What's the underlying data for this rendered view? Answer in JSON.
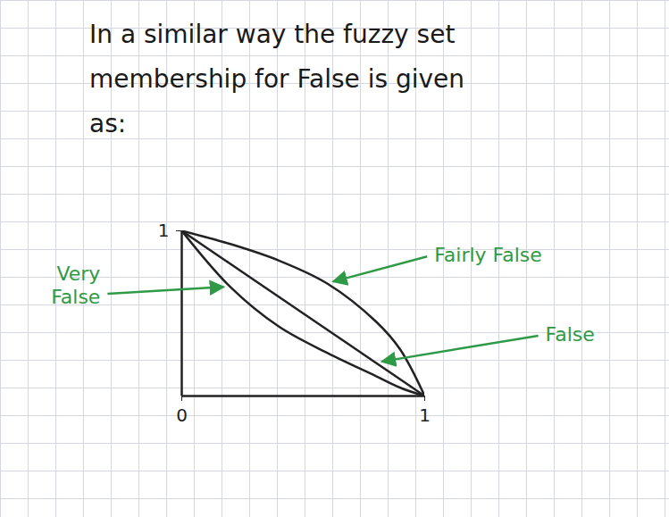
{
  "chart_data": {
    "type": "line",
    "title": "In a similar way the fuzzy set membership for False is given as:",
    "x": [
      0,
      0.2,
      0.4,
      0.6,
      0.8,
      0.9,
      1
    ],
    "series": [
      {
        "name": "Fairly False",
        "color": "#222222",
        "values": [
          1,
          0.92,
          0.82,
          0.68,
          0.45,
          0.28,
          0
        ]
      },
      {
        "name": "False",
        "color": "#222222",
        "values": [
          1,
          0.8,
          0.6,
          0.4,
          0.2,
          0.1,
          0
        ]
      },
      {
        "name": "Very False",
        "color": "#222222",
        "values": [
          1,
          0.66,
          0.42,
          0.26,
          0.12,
          0.05,
          0
        ]
      }
    ],
    "xlim": [
      0,
      1
    ],
    "ylim": [
      0,
      1
    ],
    "xticks": [
      0,
      1
    ],
    "yticks": [
      1
    ],
    "grid": false
  }
}
